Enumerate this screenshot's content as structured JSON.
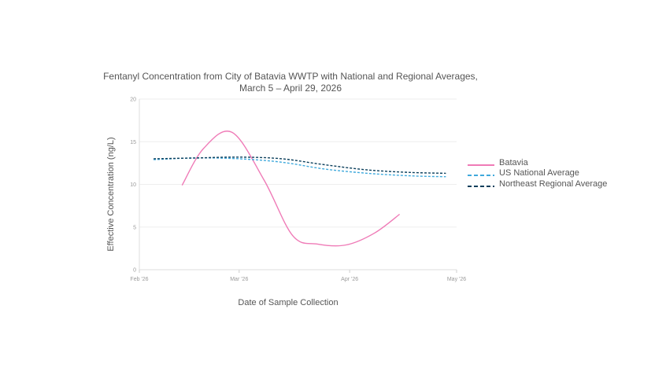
{
  "chart_data": {
    "type": "line",
    "title": "Fentanyl Concentration from City of Batavia WWTP with National and Regional Averages,",
    "subtitle": "March 5 – April 29, 2026",
    "xlabel": "Date of Sample Collection",
    "ylabel": "Effective Concentration (ng/L)",
    "x_ticks": [
      "Feb '26",
      "Mar '26",
      "Apr '26",
      "May '26"
    ],
    "y_ticks": [
      0,
      5,
      10,
      15,
      20
    ],
    "xlim": [
      "2026-02-01",
      "2026-05-01"
    ],
    "ylim": [
      0,
      20
    ],
    "grid": true,
    "legend_position": "right",
    "series": [
      {
        "name": "Batavia",
        "color": "#ef7bb7",
        "style": "solid",
        "points": [
          {
            "x": "2026-02-13",
            "y": 9.9
          },
          {
            "x": "2026-02-19",
            "y": 14.2
          },
          {
            "x": "2026-02-27",
            "y": 16.1
          },
          {
            "x": "2026-03-08",
            "y": 10.5
          },
          {
            "x": "2026-03-16",
            "y": 4.0
          },
          {
            "x": "2026-03-23",
            "y": 3.0
          },
          {
            "x": "2026-03-31",
            "y": 2.9
          },
          {
            "x": "2026-04-08",
            "y": 4.3
          },
          {
            "x": "2026-04-15",
            "y": 6.5
          }
        ]
      },
      {
        "name": "US National Average",
        "color": "#3fa9dc",
        "style": "dashed",
        "points": [
          {
            "x": "2026-02-05",
            "y": 12.9
          },
          {
            "x": "2026-02-17",
            "y": 13.1
          },
          {
            "x": "2026-03-01",
            "y": 13.0
          },
          {
            "x": "2026-03-13",
            "y": 12.6
          },
          {
            "x": "2026-03-25",
            "y": 11.8
          },
          {
            "x": "2026-04-06",
            "y": 11.3
          },
          {
            "x": "2026-04-18",
            "y": 11.0
          },
          {
            "x": "2026-04-28",
            "y": 10.9
          }
        ]
      },
      {
        "name": "Northeast Regional Average",
        "color": "#0b3f5c",
        "style": "dashed",
        "points": [
          {
            "x": "2026-02-05",
            "y": 13.0
          },
          {
            "x": "2026-02-17",
            "y": 13.1
          },
          {
            "x": "2026-03-01",
            "y": 13.2
          },
          {
            "x": "2026-03-13",
            "y": 13.0
          },
          {
            "x": "2026-03-25",
            "y": 12.3
          },
          {
            "x": "2026-04-06",
            "y": 11.7
          },
          {
            "x": "2026-04-18",
            "y": 11.4
          },
          {
            "x": "2026-04-28",
            "y": 11.3
          }
        ]
      }
    ]
  }
}
